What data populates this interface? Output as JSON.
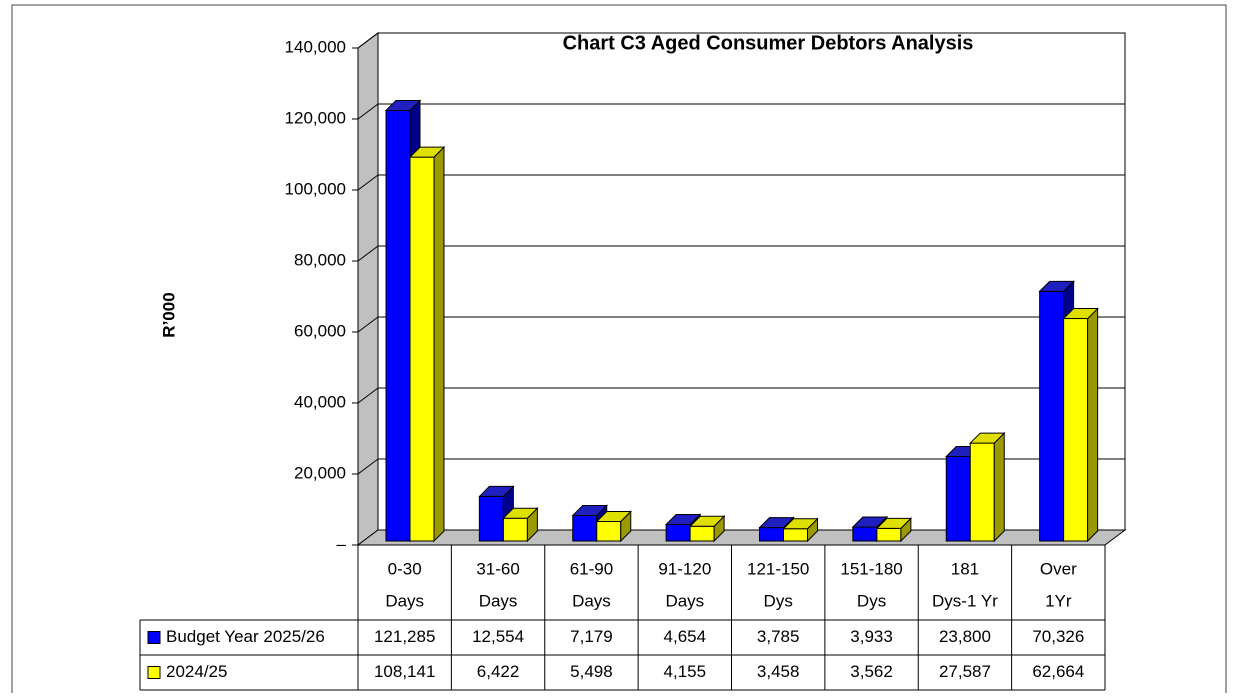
{
  "chart_data": {
    "type": "bar3d",
    "title": "Chart C3 Aged Consumer Debtors Analysis",
    "ylabel": "R’000",
    "categories": [
      [
        "0-30",
        "Days"
      ],
      [
        "31-60",
        "Days"
      ],
      [
        "61-90",
        "Days"
      ],
      [
        "91-120",
        "Days"
      ],
      [
        "121-150",
        "Dys"
      ],
      [
        "151-180",
        "Dys"
      ],
      [
        "181",
        "Dys-1 Yr"
      ],
      [
        "Over",
        "1Yr"
      ]
    ],
    "series": [
      {
        "name": "Budget Year 2025/26",
        "color": "#0000ff",
        "values": [
          121285,
          12554,
          7179,
          4654,
          3785,
          3933,
          23800,
          70326
        ],
        "value_labels": [
          "121,285",
          "12,554",
          "7,179",
          "4,654",
          "3,785",
          "3,933",
          "23,800",
          "70,326"
        ]
      },
      {
        "name": "2024/25",
        "color": "#ffff00",
        "values": [
          108141,
          6422,
          5498,
          4155,
          3458,
          3562,
          27587,
          62664
        ],
        "value_labels": [
          "108,141",
          "6,422",
          "5,498",
          "4,155",
          "3,458",
          "3,562",
          "27,587",
          "62,664"
        ]
      }
    ],
    "ylim": [
      0,
      140000
    ],
    "yticks": [
      {
        "value": 0,
        "label": "–"
      },
      {
        "value": 20000,
        "label": "20,000"
      },
      {
        "value": 40000,
        "label": "40,000"
      },
      {
        "value": 60000,
        "label": "60,000"
      },
      {
        "value": 80000,
        "label": "80,000"
      },
      {
        "value": 100000,
        "label": "100,000"
      },
      {
        "value": 120000,
        "label": "120,000"
      },
      {
        "value": 140000,
        "label": "140,000"
      }
    ],
    "grid": true
  }
}
